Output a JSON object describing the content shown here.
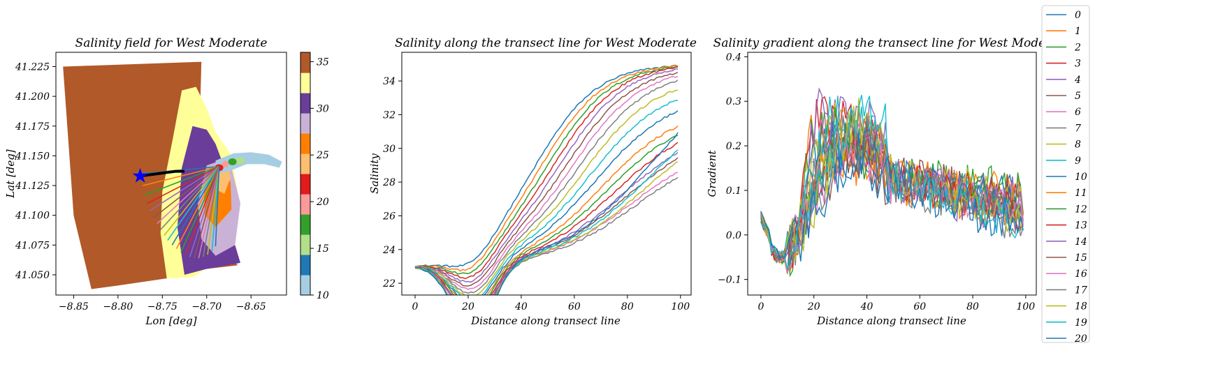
{
  "colors": {
    "tab20": [
      "#1f77b4",
      "#ff7f0e",
      "#2ca02c",
      "#d62728",
      "#9467bd",
      "#8c564b",
      "#e377c2",
      "#7f7f7f",
      "#bcbd22",
      "#17becf"
    ],
    "paired": [
      "#a6cee3",
      "#1f78b4",
      "#b2df8a",
      "#33a02c",
      "#fb9a99",
      "#e31a1c",
      "#fdbf6f",
      "#ff7f00",
      "#cab2d6",
      "#6a3d9a",
      "#ffff99",
      "#b15928"
    ]
  },
  "chart_data": [
    {
      "type": "scatter",
      "title": "Salinity field for West Moderate",
      "xlabel": "Lon [deg]",
      "ylabel": "Lat [deg]",
      "xlim": [
        -8.87,
        -8.61
      ],
      "ylim": [
        41.033,
        41.237
      ],
      "x_ticks": [
        "−8.85",
        "−8.80",
        "−8.75",
        "−8.70",
        "−8.65"
      ],
      "y_ticks": [
        "41.050",
        "41.075",
        "41.100",
        "41.125",
        "41.150",
        "41.175",
        "41.200",
        "41.225"
      ],
      "colorbar": {
        "range": [
          10,
          36
        ],
        "ticks": [
          "10",
          "15",
          "20",
          "25",
          "30",
          "35"
        ]
      },
      "marker": {
        "lon": -8.775,
        "lat": 41.133,
        "symbol": "star"
      },
      "transect_origin": {
        "lon": -8.745,
        "lat": 41.137
      },
      "pivot": {
        "lon": -8.686,
        "lat": 41.141
      }
    },
    {
      "type": "line",
      "title": "Salinity along the transect line for West Moderate",
      "xlabel": "Distance along transect line",
      "ylabel": "Salinity",
      "xlim": [
        -5,
        104
      ],
      "ylim": [
        21.3,
        35.7
      ],
      "x_ticks": [
        "0",
        "20",
        "40",
        "60",
        "80",
        "100"
      ],
      "y_ticks": [
        "22",
        "24",
        "26",
        "28",
        "30",
        "32",
        "34"
      ],
      "series_end_values": [
        34.9,
        34.9,
        34.85,
        34.8,
        34.7,
        34.5,
        34.3,
        34.0,
        33.5,
        32.9,
        32.2,
        31.3,
        30.8,
        30.3,
        29.7,
        29.4,
        28.6,
        28.3,
        29.2,
        29.9,
        30.9
      ]
    },
    {
      "type": "line",
      "title": "Salinity gradient along the transect line for West Moderate",
      "xlabel": "Distance along transect line",
      "ylabel": "Gradient",
      "xlim": [
        -5,
        104
      ],
      "ylim": [
        -0.135,
        0.41
      ],
      "x_ticks": [
        "0",
        "20",
        "40",
        "60",
        "80",
        "100"
      ],
      "y_ticks": [
        "−0.1",
        "0.0",
        "0.1",
        "0.2",
        "0.3",
        "0.4"
      ]
    }
  ],
  "legend": [
    "0",
    "1",
    "2",
    "3",
    "4",
    "5",
    "6",
    "7",
    "8",
    "9",
    "10",
    "11",
    "12",
    "13",
    "14",
    "15",
    "16",
    "17",
    "18",
    "19",
    "20"
  ]
}
